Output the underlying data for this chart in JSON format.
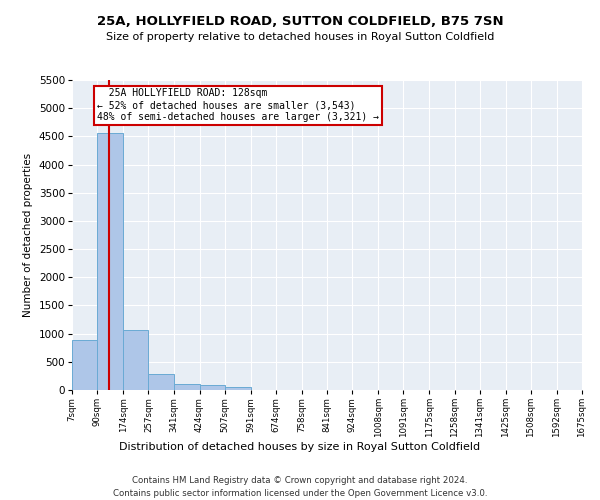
{
  "title": "25A, HOLLYFIELD ROAD, SUTTON COLDFIELD, B75 7SN",
  "subtitle": "Size of property relative to detached houses in Royal Sutton Coldfield",
  "xlabel": "Distribution of detached houses by size in Royal Sutton Coldfield",
  "ylabel": "Number of detached properties",
  "footnote1": "Contains HM Land Registry data © Crown copyright and database right 2024.",
  "footnote2": "Contains public sector information licensed under the Open Government Licence v3.0.",
  "property_size": 128,
  "property_label": "25A HOLLYFIELD ROAD: 128sqm",
  "pct_smaller": 52,
  "n_smaller": 3543,
  "pct_larger": 48,
  "n_larger": 3321,
  "bar_color": "#aec6e8",
  "bar_edge_color": "#6aaad4",
  "highlight_color": "#cc0000",
  "annotation_box_color": "#cc0000",
  "bg_color": "#e8eef5",
  "ylim": [
    0,
    5500
  ],
  "yticks": [
    0,
    500,
    1000,
    1500,
    2000,
    2500,
    3000,
    3500,
    4000,
    4500,
    5000,
    5500
  ],
  "bin_edges": [
    7,
    90,
    174,
    257,
    341,
    424,
    507,
    591,
    674,
    758,
    841,
    924,
    1008,
    1091,
    1175,
    1258,
    1341,
    1425,
    1508,
    1592,
    1675
  ],
  "bin_labels": [
    "7sqm",
    "90sqm",
    "174sqm",
    "257sqm",
    "341sqm",
    "424sqm",
    "507sqm",
    "591sqm",
    "674sqm",
    "758sqm",
    "841sqm",
    "924sqm",
    "1008sqm",
    "1091sqm",
    "1175sqm",
    "1258sqm",
    "1341sqm",
    "1425sqm",
    "1508sqm",
    "1592sqm",
    "1675sqm"
  ],
  "bar_heights": [
    880,
    4560,
    1060,
    290,
    100,
    80,
    60,
    0,
    0,
    0,
    0,
    0,
    0,
    0,
    0,
    0,
    0,
    0,
    0,
    0
  ]
}
